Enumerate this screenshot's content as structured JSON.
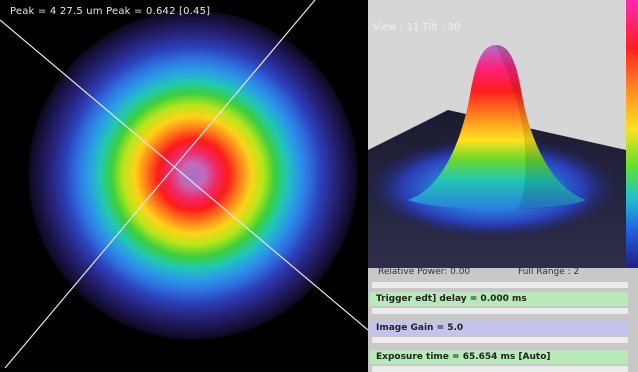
{
  "left_panel": {
    "title": "Peak = 4 27.5 um Peak = 0.642 [0.45]"
  },
  "right_panel": {
    "view_label": "View : 11 Tilt : 30"
  },
  "stats": {
    "relative_power": "Relative Power: 0.00",
    "full_range": "Full Range : 2"
  },
  "controls": {
    "trigger_delay": "Trigger edt] delay = 0.000 ms",
    "image_gain": "Image Gain = 5.0",
    "exposure_time": "Exposure time = 65.654 ms [Auto]"
  },
  "colors": {
    "trigger_field": "#b9e8b9",
    "gain_field": "#c4c4ec",
    "exposure_field": "#b9e8b9",
    "panel_bg": "#c8c8c8"
  }
}
